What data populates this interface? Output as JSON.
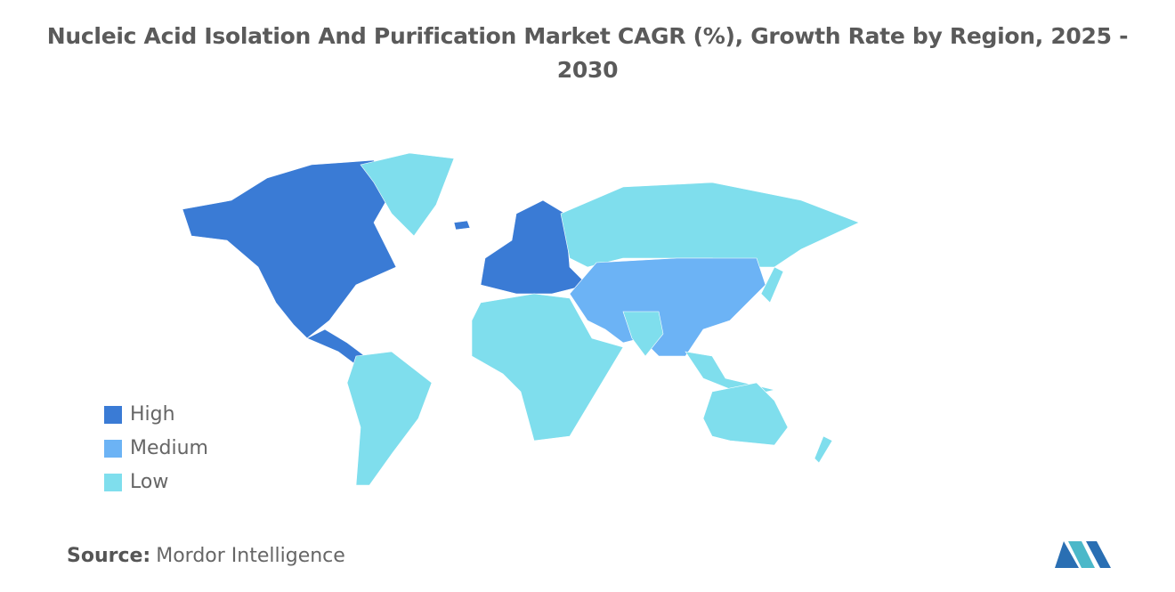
{
  "title": "Nucleic Acid Isolation And Purification Market CAGR (%), Growth Rate by Region, 2025 - 2030",
  "legend": [
    {
      "label": "High",
      "color": "#3a7bd5"
    },
    {
      "label": "Medium",
      "color": "#6cb3f5"
    },
    {
      "label": "Low",
      "color": "#7fdeed"
    }
  ],
  "source": {
    "label": "Source:",
    "text": "Mordor Intelligence"
  }
}
